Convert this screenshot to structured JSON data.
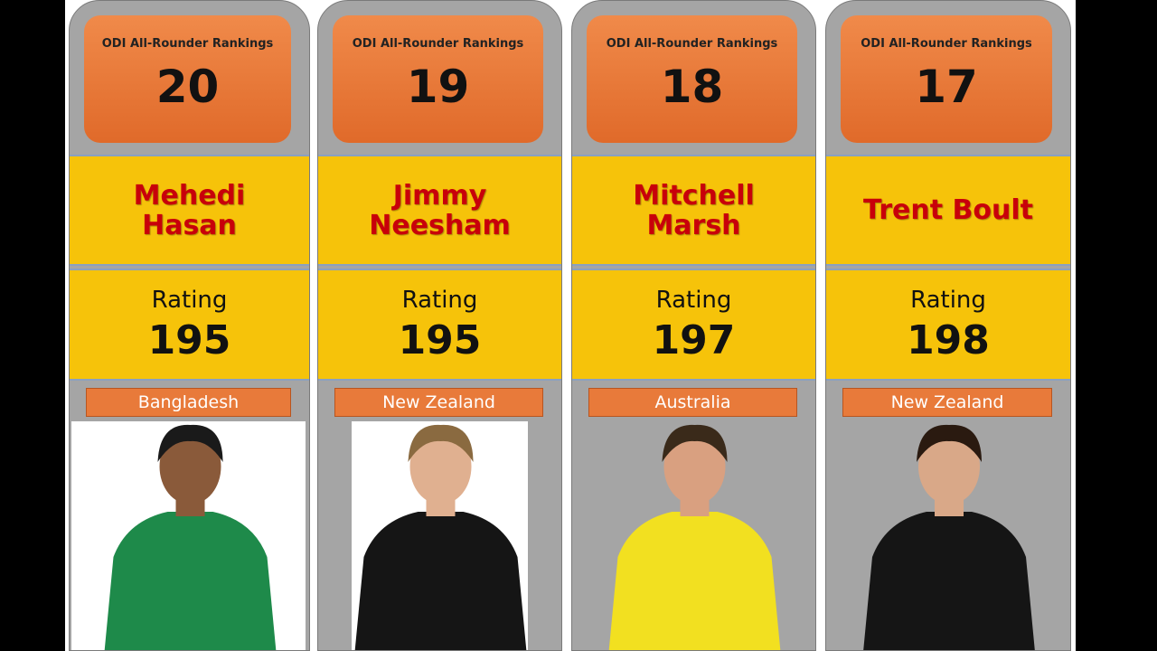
{
  "cards": [
    {
      "heading": "ODI All-Rounder Rankings",
      "rank": 20,
      "name": "Mehedi Hasan",
      "rating_label": "Rating",
      "rating": 195,
      "country": "Bangladesh"
    },
    {
      "heading": "ODI All-Rounder Rankings",
      "rank": 19,
      "name": "Jimmy Neesham",
      "rating_label": "Rating",
      "rating": 195,
      "country": "New Zealand"
    },
    {
      "heading": "ODI All-Rounder Rankings",
      "rank": 18,
      "name": "Mitchell Marsh",
      "rating_label": "Rating",
      "rating": 197,
      "country": "Australia"
    },
    {
      "heading": "ODI All-Rounder Rankings",
      "rank": 17,
      "name": "Trent Boult",
      "rating_label": "Rating",
      "rating": 198,
      "country": "New Zealand"
    }
  ]
}
